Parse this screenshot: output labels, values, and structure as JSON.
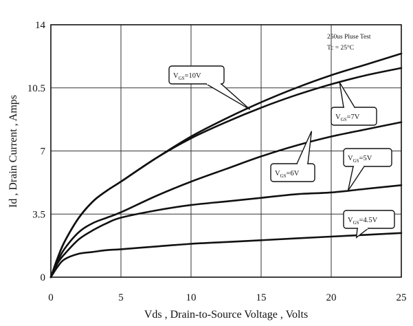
{
  "chart_data": {
    "type": "line",
    "title": "",
    "xlabel": "Vds , Drain-to-Source Voltage , Volts",
    "ylabel": "Id , Drain Current , Amps",
    "xlim": [
      0,
      25
    ],
    "ylim": [
      0,
      14
    ],
    "x_ticks": [
      "0",
      "5",
      "10",
      "15",
      "20",
      "25"
    ],
    "y_ticks": [
      "0",
      "3.5",
      "7",
      "10.5",
      "14"
    ],
    "x_tick_values": [
      0,
      5,
      10,
      15,
      20,
      25
    ],
    "y_tick_values": [
      0,
      3.5,
      7,
      10.5,
      14
    ],
    "grid": true,
    "annotations": [
      "250us Pluse Test",
      "Tc = 25°C"
    ],
    "series": [
      {
        "name": "VGS=10V",
        "label_main": "V",
        "label_sub": "GS",
        "label_rest": "=10V",
        "x": [
          0,
          0.5,
          1,
          2,
          3,
          4,
          5,
          7.5,
          10,
          12.5,
          15,
          17.5,
          20,
          22.5,
          25
        ],
        "y": [
          0,
          1.1,
          2.0,
          3.3,
          4.2,
          4.8,
          5.3,
          6.6,
          7.8,
          8.8,
          9.7,
          10.5,
          11.2,
          11.8,
          12.4
        ]
      },
      {
        "name": "VGS=7V",
        "label_main": "V",
        "label_sub": "GS",
        "label_rest": "=7V",
        "x": [
          0,
          0.5,
          1,
          2,
          3,
          4,
          5,
          7.5,
          10,
          12.5,
          15,
          17.5,
          20,
          22.5,
          25
        ],
        "y": [
          0,
          1.1,
          2.0,
          3.3,
          4.2,
          4.8,
          5.3,
          6.6,
          7.7,
          8.6,
          9.4,
          10.1,
          10.7,
          11.2,
          11.6
        ]
      },
      {
        "name": "VGS=6V",
        "label_main": "V",
        "label_sub": "GS",
        "label_rest": "=6V",
        "x": [
          0,
          0.5,
          1,
          2,
          3,
          4,
          5,
          7.5,
          10,
          12.5,
          15,
          17.5,
          20,
          22.5,
          25
        ],
        "y": [
          0,
          0.9,
          1.6,
          2.5,
          3.0,
          3.3,
          3.6,
          4.5,
          5.3,
          6.0,
          6.7,
          7.3,
          7.8,
          8.2,
          8.6
        ]
      },
      {
        "name": "VGS=5V",
        "label_main": "V",
        "label_sub": "GS",
        "label_rest": "=5V",
        "x": [
          0,
          0.5,
          1,
          2,
          3,
          4,
          5,
          7.5,
          10,
          12.5,
          15,
          17.5,
          20,
          22.5,
          25
        ],
        "y": [
          0,
          0.8,
          1.3,
          2.1,
          2.6,
          3.0,
          3.3,
          3.7,
          4.0,
          4.2,
          4.4,
          4.6,
          4.7,
          4.9,
          5.1
        ]
      },
      {
        "name": "VGS=4.5V",
        "label_main": "V",
        "label_sub": "GS",
        "label_rest": "=4.5V",
        "x": [
          0,
          0.5,
          1,
          2,
          3,
          4,
          5,
          7.5,
          10,
          12.5,
          15,
          17.5,
          20,
          22.5,
          25
        ],
        "y": [
          0,
          0.6,
          1.0,
          1.3,
          1.4,
          1.5,
          1.55,
          1.7,
          1.85,
          1.95,
          2.05,
          2.15,
          2.25,
          2.35,
          2.45
        ]
      }
    ]
  }
}
